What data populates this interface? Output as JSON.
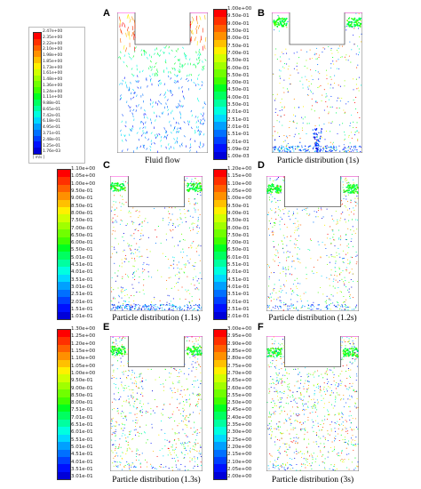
{
  "panels": [
    {
      "letter": "A",
      "caption": "Fluid flow"
    },
    {
      "letter": "B",
      "caption": "Particle distribution (1s)"
    },
    {
      "letter": "C",
      "caption": "Particle distribution (1.1s)"
    },
    {
      "letter": "D",
      "caption": "Particle distribution (1.2s)"
    },
    {
      "letter": "E",
      "caption": "Particle distribution (1.3s)"
    },
    {
      "letter": "F",
      "caption": "Particle distribution (3s)"
    }
  ],
  "legends": [
    {
      "id": "A",
      "unit": "[ m/s ]",
      "ticks": [
        "2.47e+00",
        "2.35e+00",
        "2.22e+00",
        "2.10e+00",
        "1.98e+00",
        "1.85e+00",
        "1.73e+00",
        "1.61e+00",
        "1.48e+00",
        "1.36e+00",
        "1.24e+00",
        "1.11e+00",
        "9.88e-01",
        "8.65e-01",
        "7.42e-01",
        "6.18e-01",
        "4.95e-01",
        "3.71e-01",
        "2.48e-01",
        "1.25e-01",
        "1.76e-03"
      ]
    },
    {
      "id": "B",
      "ticks": [
        "1.00e+00",
        "9.50e-01",
        "9.00e-01",
        "8.50e-01",
        "8.00e-01",
        "7.50e-01",
        "7.00e-01",
        "6.50e-01",
        "6.00e-01",
        "5.50e-01",
        "5.00e-01",
        "4.50e-01",
        "4.00e-01",
        "3.50e-01",
        "3.01e-01",
        "2.51e-01",
        "2.01e-01",
        "1.51e-01",
        "1.01e-01",
        "5.09e-02",
        "1.00e-03"
      ]
    },
    {
      "id": "C",
      "ticks": [
        "1.10e+00",
        "1.05e+00",
        "1.00e+00",
        "9.50e-01",
        "9.00e-01",
        "8.50e-01",
        "8.00e-01",
        "7.50e-01",
        "7.00e-01",
        "6.50e-01",
        "6.00e-01",
        "5.50e-01",
        "5.01e-01",
        "4.51e-01",
        "4.01e-01",
        "3.51e-01",
        "3.01e-01",
        "2.51e-01",
        "2.01e-01",
        "1.51e-01",
        "1.01e-01"
      ]
    },
    {
      "id": "D",
      "ticks": [
        "1.20e+00",
        "1.15e+00",
        "1.10e+00",
        "1.05e+00",
        "1.00e+00",
        "9.50e-01",
        "9.00e-01",
        "8.50e-01",
        "8.00e-01",
        "7.50e-01",
        "7.00e-01",
        "6.50e-01",
        "6.01e-01",
        "5.51e-01",
        "5.01e-01",
        "4.51e-01",
        "4.01e-01",
        "3.51e-01",
        "3.01e-01",
        "2.51e-01",
        "2.01e-01"
      ]
    },
    {
      "id": "E",
      "ticks": [
        "1.30e+00",
        "1.25e+00",
        "1.20e+00",
        "1.15e+00",
        "1.10e+00",
        "1.05e+00",
        "1.00e+00",
        "9.50e-01",
        "9.00e-01",
        "8.50e-01",
        "8.00e-01",
        "7.51e-01",
        "7.01e-01",
        "6.51e-01",
        "6.01e-01",
        "5.51e-01",
        "5.01e-01",
        "4.51e-01",
        "4.01e-01",
        "3.51e-01",
        "3.01e-01"
      ]
    },
    {
      "id": "F",
      "ticks": [
        "3.00e+00",
        "2.95e+00",
        "2.90e+00",
        "2.85e+00",
        "2.80e+00",
        "2.75e+00",
        "2.70e+00",
        "2.65e+00",
        "2.60e+00",
        "2.55e+00",
        "2.50e+00",
        "2.45e+00",
        "2.40e+00",
        "2.35e+00",
        "2.30e+00",
        "2.25e+00",
        "2.20e+00",
        "2.15e+00",
        "2.10e+00",
        "2.05e+00",
        "2.00e+00"
      ]
    }
  ],
  "colors": [
    "#ff0000",
    "#ff3000",
    "#ff6000",
    "#ff9000",
    "#ffc000",
    "#fff000",
    "#d0ff00",
    "#a0ff00",
    "#70ff00",
    "#40ff00",
    "#00ff20",
    "#00ff60",
    "#00ffa0",
    "#00ffe0",
    "#00d8ff",
    "#00a0ff",
    "#0070ff",
    "#0040ff",
    "#0010ff",
    "#0000d8"
  ]
}
